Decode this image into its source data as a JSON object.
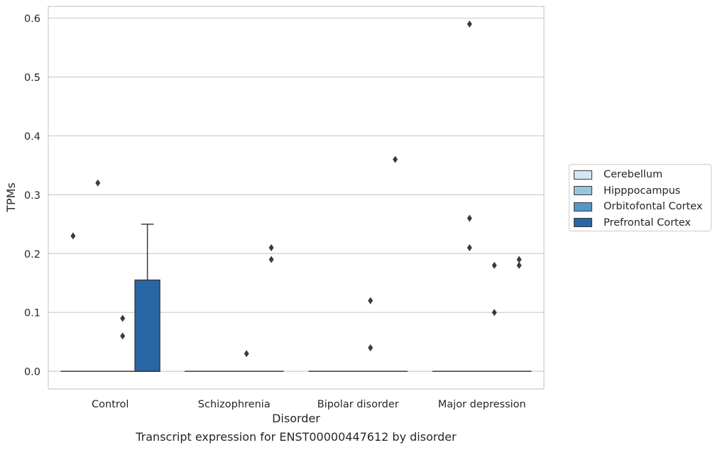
{
  "chart_data": {
    "type": "box",
    "xlabel": "Disorder",
    "ylabel": "TPMs",
    "caption": "Transcript expression for ENST00000447612 by disorder",
    "categories": [
      "Control",
      "Schizophrenia",
      "Bipolar disorder",
      "Major depression"
    ],
    "ylim": [
      -0.03,
      0.62
    ],
    "yticks": [
      0.0,
      0.1,
      0.2,
      0.3,
      0.4,
      0.5,
      0.6
    ],
    "ytick_labels": [
      "0.0",
      "0.1",
      "0.2",
      "0.3",
      "0.4",
      "0.5",
      "0.6"
    ],
    "grid": "horizontal",
    "legend_placement": "right",
    "series": [
      {
        "name": "Cerebellum",
        "color": "#d4e5f3",
        "boxes": [
          {
            "q1": 0,
            "median": 0,
            "q3": 0,
            "whisker_low": 0,
            "whisker_high": 0,
            "outliers": [
              0.23
            ]
          },
          {
            "q1": 0,
            "median": 0,
            "q3": 0,
            "whisker_low": 0,
            "whisker_high": 0,
            "outliers": []
          },
          {
            "q1": 0,
            "median": 0,
            "q3": 0,
            "whisker_low": 0,
            "whisker_high": 0,
            "outliers": []
          },
          {
            "q1": 0,
            "median": 0,
            "q3": 0,
            "whisker_low": 0,
            "whisker_high": 0,
            "outliers": []
          }
        ]
      },
      {
        "name": "Hipppocampus",
        "color": "#9ac3dd",
        "boxes": [
          {
            "q1": 0,
            "median": 0,
            "q3": 0,
            "whisker_low": 0,
            "whisker_high": 0,
            "outliers": [
              0.32
            ]
          },
          {
            "q1": 0,
            "median": 0,
            "q3": 0,
            "whisker_low": 0,
            "whisker_high": 0,
            "outliers": []
          },
          {
            "q1": 0,
            "median": 0,
            "q3": 0,
            "whisker_low": 0,
            "whisker_high": 0,
            "outliers": []
          },
          {
            "q1": 0,
            "median": 0,
            "q3": 0,
            "whisker_low": 0,
            "whisker_high": 0,
            "outliers": [
              0.59,
              0.26,
              0.21
            ]
          }
        ]
      },
      {
        "name": "Orbitofontal Cortex",
        "color": "#5596c8",
        "boxes": [
          {
            "q1": 0,
            "median": 0,
            "q3": 0,
            "whisker_low": 0,
            "whisker_high": 0,
            "outliers": [
              0.09,
              0.06
            ]
          },
          {
            "q1": 0,
            "median": 0,
            "q3": 0,
            "whisker_low": 0,
            "whisker_high": 0,
            "outliers": [
              0.03
            ]
          },
          {
            "q1": 0,
            "median": 0,
            "q3": 0,
            "whisker_low": 0,
            "whisker_high": 0,
            "outliers": [
              0.12,
              0.04
            ]
          },
          {
            "q1": 0,
            "median": 0,
            "q3": 0,
            "whisker_low": 0,
            "whisker_high": 0,
            "outliers": [
              0.18,
              0.1
            ]
          }
        ]
      },
      {
        "name": "Prefrontal Cortex",
        "color": "#2866a5",
        "boxes": [
          {
            "q1": 0,
            "median": 0,
            "q3": 0.155,
            "whisker_low": 0,
            "whisker_high": 0.25,
            "outliers": []
          },
          {
            "q1": 0,
            "median": 0,
            "q3": 0,
            "whisker_low": 0,
            "whisker_high": 0,
            "outliers": [
              0.21,
              0.19
            ]
          },
          {
            "q1": 0,
            "median": 0,
            "q3": 0,
            "whisker_low": 0,
            "whisker_high": 0,
            "outliers": [
              0.36
            ]
          },
          {
            "q1": 0,
            "median": 0,
            "q3": 0,
            "whisker_low": 0,
            "whisker_high": 0,
            "outliers": [
              0.19,
              0.18
            ]
          }
        ]
      }
    ]
  }
}
